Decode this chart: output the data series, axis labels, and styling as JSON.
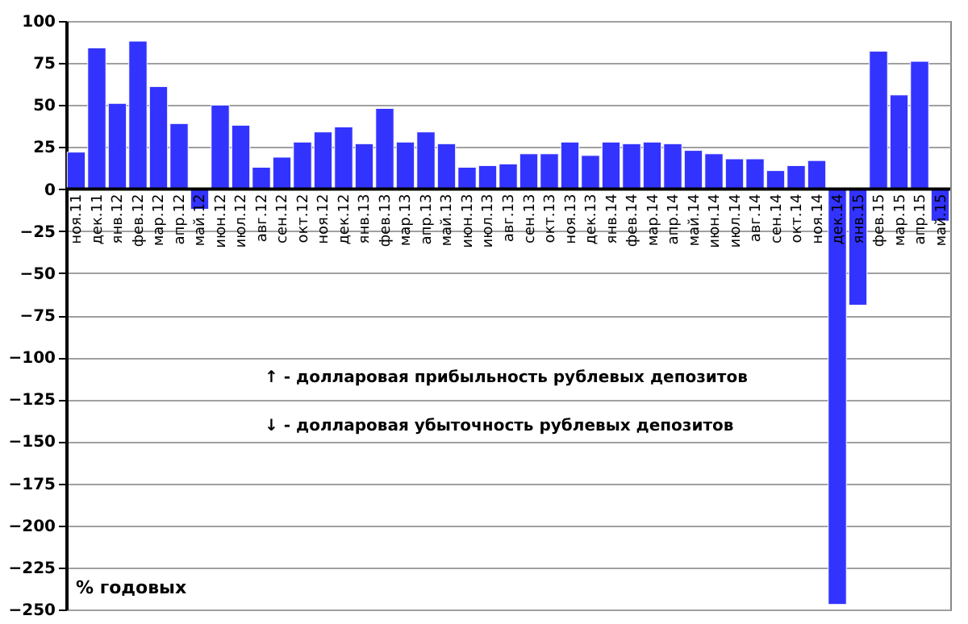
{
  "chart_data": {
    "type": "bar",
    "categories": [
      "ноя.11",
      "дек.11",
      "янв.12",
      "фев.12",
      "мар.12",
      "апр.12",
      "май.12",
      "июн.12",
      "июл.12",
      "авг.12",
      "сен.12",
      "окт.12",
      "ноя.12",
      "дек.12",
      "янв.13",
      "фев.13",
      "мар.13",
      "апр.13",
      "май.13",
      "июн.13",
      "июл.13",
      "авг.13",
      "сен.13",
      "окт.13",
      "ноя.13",
      "дек.13",
      "янв.14",
      "фев.14",
      "мар.14",
      "апр.14",
      "май.14",
      "июн.14",
      "июл.14",
      "авг.14",
      "сен.14",
      "окт.14",
      "ноя.14",
      "дек.14",
      "янв.15",
      "фев.15",
      "мар.15",
      "апр.15",
      "май.15"
    ],
    "values": [
      22,
      84,
      51,
      88,
      61,
      39,
      -12,
      50,
      38,
      13,
      19,
      28,
      34,
      37,
      27,
      48,
      28,
      34,
      27,
      13,
      14,
      15,
      21,
      21,
      28,
      20,
      28,
      27,
      28,
      27,
      23,
      21,
      18,
      18,
      11,
      14,
      17,
      -247,
      -69,
      82,
      56,
      76,
      -19
    ],
    "color": "#3333ff",
    "ylim": [
      -250,
      100
    ],
    "yticks": [
      -250,
      -225,
      -200,
      -175,
      -150,
      -125,
      -100,
      -75,
      -50,
      -25,
      0,
      25,
      50,
      75,
      100
    ],
    "grid": "y",
    "annotations": [
      "↑ - долларовая  прибыльность  рублевых депозитов",
      "↓ - долларовая  убыточность  рублевых депозитов",
      "% годовых"
    ]
  }
}
